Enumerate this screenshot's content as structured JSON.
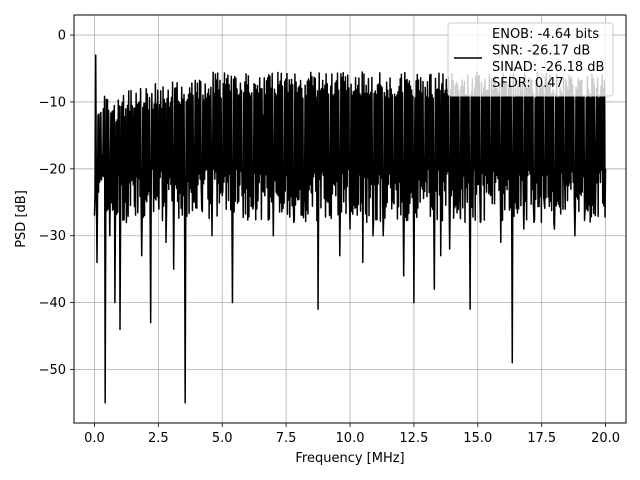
{
  "chart_data": {
    "type": "line",
    "xlabel": "Frequency [MHz]",
    "ylabel": "PSD [dB]",
    "xlim": [
      -0.8,
      20.8
    ],
    "ylim": [
      -58,
      3
    ],
    "x_ticks": [
      0.0,
      2.5,
      5.0,
      7.5,
      10.0,
      12.5,
      15.0,
      17.5,
      20.0
    ],
    "x_tick_labels": [
      "0.0",
      "2.5",
      "5.0",
      "7.5",
      "10.0",
      "12.5",
      "15.0",
      "17.5",
      "20.0"
    ],
    "y_ticks": [
      0,
      -10,
      -20,
      -30,
      -40,
      -50
    ],
    "y_tick_labels": [
      "0",
      "−10",
      "−20",
      "−30",
      "−40",
      "−50"
    ],
    "grid": true,
    "legend_position": "top-right",
    "series_color": "#000000",
    "series": [
      {
        "name": "ENOB: -4.64 bits\nSNR: -26.17 dB\nSINAD: -26.18 dB\nSFDR: 0.47",
        "legend_lines": [
          "ENOB: -4.64 bits",
          "SNR: -26.17 dB",
          "SINAD: -26.18 dB",
          "SFDR: 0.47"
        ],
        "x": [
          0.0,
          0.05,
          0.1,
          0.2,
          0.3,
          0.42,
          0.6,
          0.8,
          1.0,
          1.25,
          1.5,
          1.85,
          2.2,
          2.5,
          2.8,
          3.1,
          3.55,
          3.9,
          4.2,
          4.6,
          5.0,
          5.4,
          5.8,
          6.2,
          6.6,
          7.0,
          7.4,
          7.8,
          8.2,
          8.75,
          9.2,
          9.6,
          10.0,
          10.5,
          10.9,
          11.3,
          11.7,
          12.1,
          12.5,
          12.9,
          13.3,
          13.55,
          13.9,
          14.3,
          14.7,
          15.1,
          15.5,
          15.9,
          16.35,
          16.8,
          17.2,
          17.6,
          18.0,
          18.4,
          18.8,
          19.2,
          19.6,
          20.0
        ],
        "y": [
          -27,
          -3,
          -34,
          -22,
          -18,
          -55,
          -30,
          -40,
          -44,
          -28,
          -20,
          -33,
          -43,
          -24,
          -31,
          -35,
          -55,
          -25,
          -26,
          -30,
          -24,
          -40,
          -20,
          -26,
          -12,
          -30,
          -22,
          -28,
          -25,
          -41,
          -27,
          -33,
          -29,
          -34,
          -30,
          -30,
          -25,
          -36,
          -40,
          -20,
          -38,
          -33,
          -32,
          -25,
          -41,
          -28,
          -24,
          -31,
          -49,
          -29,
          -28,
          -25,
          -29,
          -22,
          -30,
          -26,
          -27,
          -20
        ]
      }
    ]
  }
}
